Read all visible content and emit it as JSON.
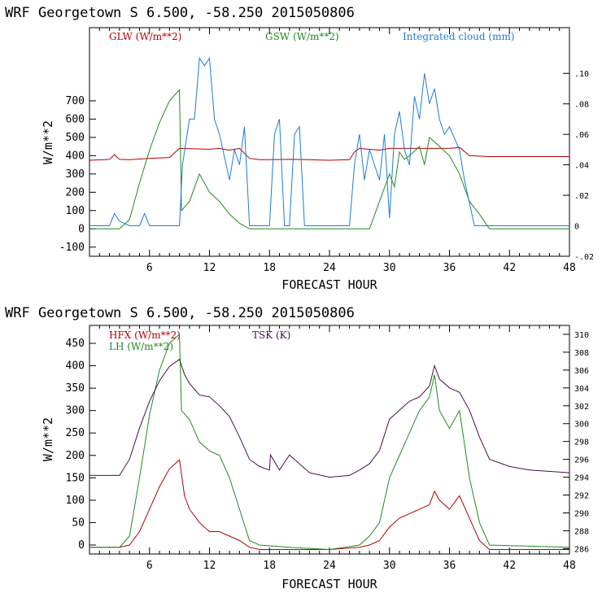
{
  "chart_data": [
    {
      "type": "line",
      "title": "WRF   Georgetown S   6.500, -58.250  2015050806",
      "xlabel": "FORECAST HOUR",
      "ylabel": "W/m**2",
      "xlim": [
        0,
        48
      ],
      "ylim": [
        -150,
        1100
      ],
      "y2lim": [
        -0.02,
        0.13
      ],
      "xticks": [
        "6",
        "12",
        "18",
        "24",
        "30",
        "36",
        "42",
        "48"
      ],
      "yticks": [
        "-100",
        "0",
        "100",
        "200",
        "300",
        "400",
        "500",
        "600",
        "700"
      ],
      "y2ticks": [
        "-.02",
        "0",
        ".02",
        ".04",
        ".06",
        ".08",
        ".10"
      ],
      "series": [
        {
          "name": "GLW (W/m**2)",
          "axis": "left",
          "color": "#b30000",
          "x": [
            0,
            2,
            2.5,
            3,
            4,
            6,
            8,
            9,
            12,
            13,
            14,
            15,
            16,
            17,
            18,
            20,
            22,
            24,
            26,
            26.5,
            27,
            29,
            30,
            33,
            36,
            37,
            38,
            40,
            48
          ],
          "y": [
            375,
            380,
            405,
            380,
            378,
            385,
            390,
            440,
            435,
            440,
            430,
            440,
            385,
            378,
            378,
            380,
            378,
            375,
            378,
            420,
            440,
            430,
            440,
            440,
            440,
            445,
            400,
            395,
            395
          ]
        },
        {
          "name": "GSW (W/m**2)",
          "axis": "left",
          "color": "#1e8c1e",
          "x": [
            0,
            3,
            4,
            5,
            6,
            7,
            8,
            9,
            9.2,
            10,
            11,
            12,
            13,
            14,
            15,
            16,
            17,
            24,
            28,
            29,
            30,
            30.5,
            31,
            31.5,
            32,
            33,
            33.5,
            34,
            35,
            36,
            37,
            38,
            39,
            40,
            48
          ],
          "y": [
            0,
            0,
            50,
            250,
            430,
            580,
            700,
            760,
            100,
            150,
            300,
            200,
            150,
            80,
            30,
            0,
            0,
            0,
            0,
            150,
            300,
            230,
            420,
            380,
            400,
            450,
            350,
            500,
            450,
            400,
            300,
            150,
            80,
            0,
            0
          ]
        },
        {
          "name": "Integrated cloud (mm)",
          "axis": "right",
          "color": "#1e7cd8",
          "x": [
            0,
            2,
            2.5,
            3,
            4,
            5,
            5.5,
            6,
            8,
            9,
            9.3,
            10,
            10.5,
            11,
            11.5,
            12,
            12.5,
            13,
            14,
            14.5,
            15,
            15.5,
            16,
            17,
            18,
            18.5,
            19,
            19.5,
            20,
            20.5,
            21,
            21.5,
            22,
            26,
            26.5,
            27,
            27.5,
            28,
            28.5,
            29,
            29.5,
            30,
            30.5,
            31,
            31.5,
            32,
            32.5,
            33,
            33.5,
            34,
            34.5,
            35,
            35.5,
            36,
            37,
            37.5,
            38,
            38.5,
            39,
            48
          ],
          "y": [
            0,
            0,
            0.008,
            0.003,
            0,
            0,
            0.008,
            0,
            0,
            0,
            0.04,
            0.07,
            0.07,
            0.11,
            0.105,
            0.11,
            0.07,
            0.06,
            0.03,
            0.05,
            0.04,
            0.065,
            0,
            0,
            0,
            0.06,
            0.07,
            0,
            0,
            0.06,
            0.065,
            0,
            0,
            0,
            0.04,
            0.06,
            0.03,
            0.05,
            0.04,
            0.03,
            0.06,
            0.005,
            0.06,
            0.075,
            0.05,
            0.04,
            0.085,
            0.07,
            0.1,
            0.08,
            0.09,
            0.07,
            0.06,
            0.065,
            0.05,
            0.03,
            0.015,
            0,
            0,
            0
          ]
        }
      ]
    },
    {
      "type": "line",
      "title": "WRF   Georgetown S   6.500, -58.250  2015050806",
      "xlabel": "FORECAST HOUR",
      "ylabel": "W/m**2",
      "xlim": [
        0,
        48
      ],
      "ylim": [
        -20,
        490
      ],
      "y2lim": [
        285.4,
        311.0
      ],
      "xticks": [
        "6",
        "12",
        "18",
        "24",
        "30",
        "36",
        "42",
        "48"
      ],
      "yticks": [
        "0",
        "50",
        "100",
        "150",
        "200",
        "250",
        "300",
        "350",
        "400",
        "450"
      ],
      "y2ticks": [
        "286",
        "288",
        "290",
        "292",
        "294",
        "296",
        "298",
        "300",
        "302",
        "304",
        "306",
        "308",
        "310"
      ],
      "series": [
        {
          "name": "HFX (W/m**2)",
          "axis": "left",
          "color": "#b30000",
          "x": [
            0,
            3,
            4,
            5,
            6,
            7,
            8,
            9,
            9.5,
            10,
            11,
            12,
            13,
            14,
            15,
            16,
            17,
            20,
            24,
            27,
            28,
            29,
            30,
            31,
            32,
            33,
            34,
            34.5,
            35,
            36,
            37,
            38,
            39,
            40,
            48
          ],
          "y": [
            -5,
            -5,
            0,
            30,
            80,
            130,
            170,
            190,
            110,
            80,
            50,
            30,
            30,
            20,
            10,
            -5,
            -10,
            -10,
            -10,
            -5,
            0,
            10,
            40,
            60,
            70,
            80,
            90,
            120,
            100,
            80,
            110,
            60,
            10,
            -10,
            -10
          ]
        },
        {
          "name": "LH  (W/m**2)",
          "axis": "left",
          "color": "#1e8c1e",
          "x": [
            0,
            3,
            4,
            5,
            6,
            7,
            8,
            9,
            9.2,
            10,
            11,
            12,
            13,
            14,
            15,
            16,
            17,
            20,
            24,
            27,
            28,
            29,
            30,
            31,
            32,
            33,
            34,
            34.5,
            35,
            36,
            37,
            38,
            39,
            40,
            48
          ],
          "y": [
            -5,
            -5,
            20,
            150,
            290,
            390,
            450,
            470,
            300,
            280,
            230,
            210,
            200,
            150,
            80,
            10,
            0,
            -5,
            -10,
            0,
            20,
            50,
            150,
            200,
            250,
            300,
            330,
            380,
            300,
            260,
            300,
            150,
            50,
            0,
            -5
          ]
        },
        {
          "name": "TSK (K)",
          "axis": "right",
          "color": "#4a0e4a",
          "x": [
            0,
            2,
            3,
            4,
            5,
            6,
            7,
            8,
            9,
            9.5,
            10,
            11,
            12,
            13,
            14,
            15,
            16,
            17,
            18,
            18.1,
            19,
            20,
            22,
            24,
            26,
            27,
            28,
            29,
            30,
            31,
            32,
            33,
            34,
            34.5,
            35,
            36,
            37,
            38,
            39,
            40,
            42,
            44,
            48
          ],
          "y": [
            294.2,
            294.2,
            294.2,
            296,
            299.5,
            302.5,
            304.8,
            306.4,
            307.2,
            305.5,
            304.5,
            303.2,
            303,
            302,
            300.8,
            298.5,
            296,
            295.2,
            294.8,
            296.5,
            294.8,
            296.5,
            294.5,
            294,
            294.2,
            294.8,
            295.5,
            297,
            300.5,
            301.5,
            302.5,
            303,
            304.2,
            306.5,
            305,
            304,
            303.5,
            301.5,
            298.5,
            296,
            295.2,
            294.8,
            294.5
          ]
        }
      ]
    }
  ]
}
